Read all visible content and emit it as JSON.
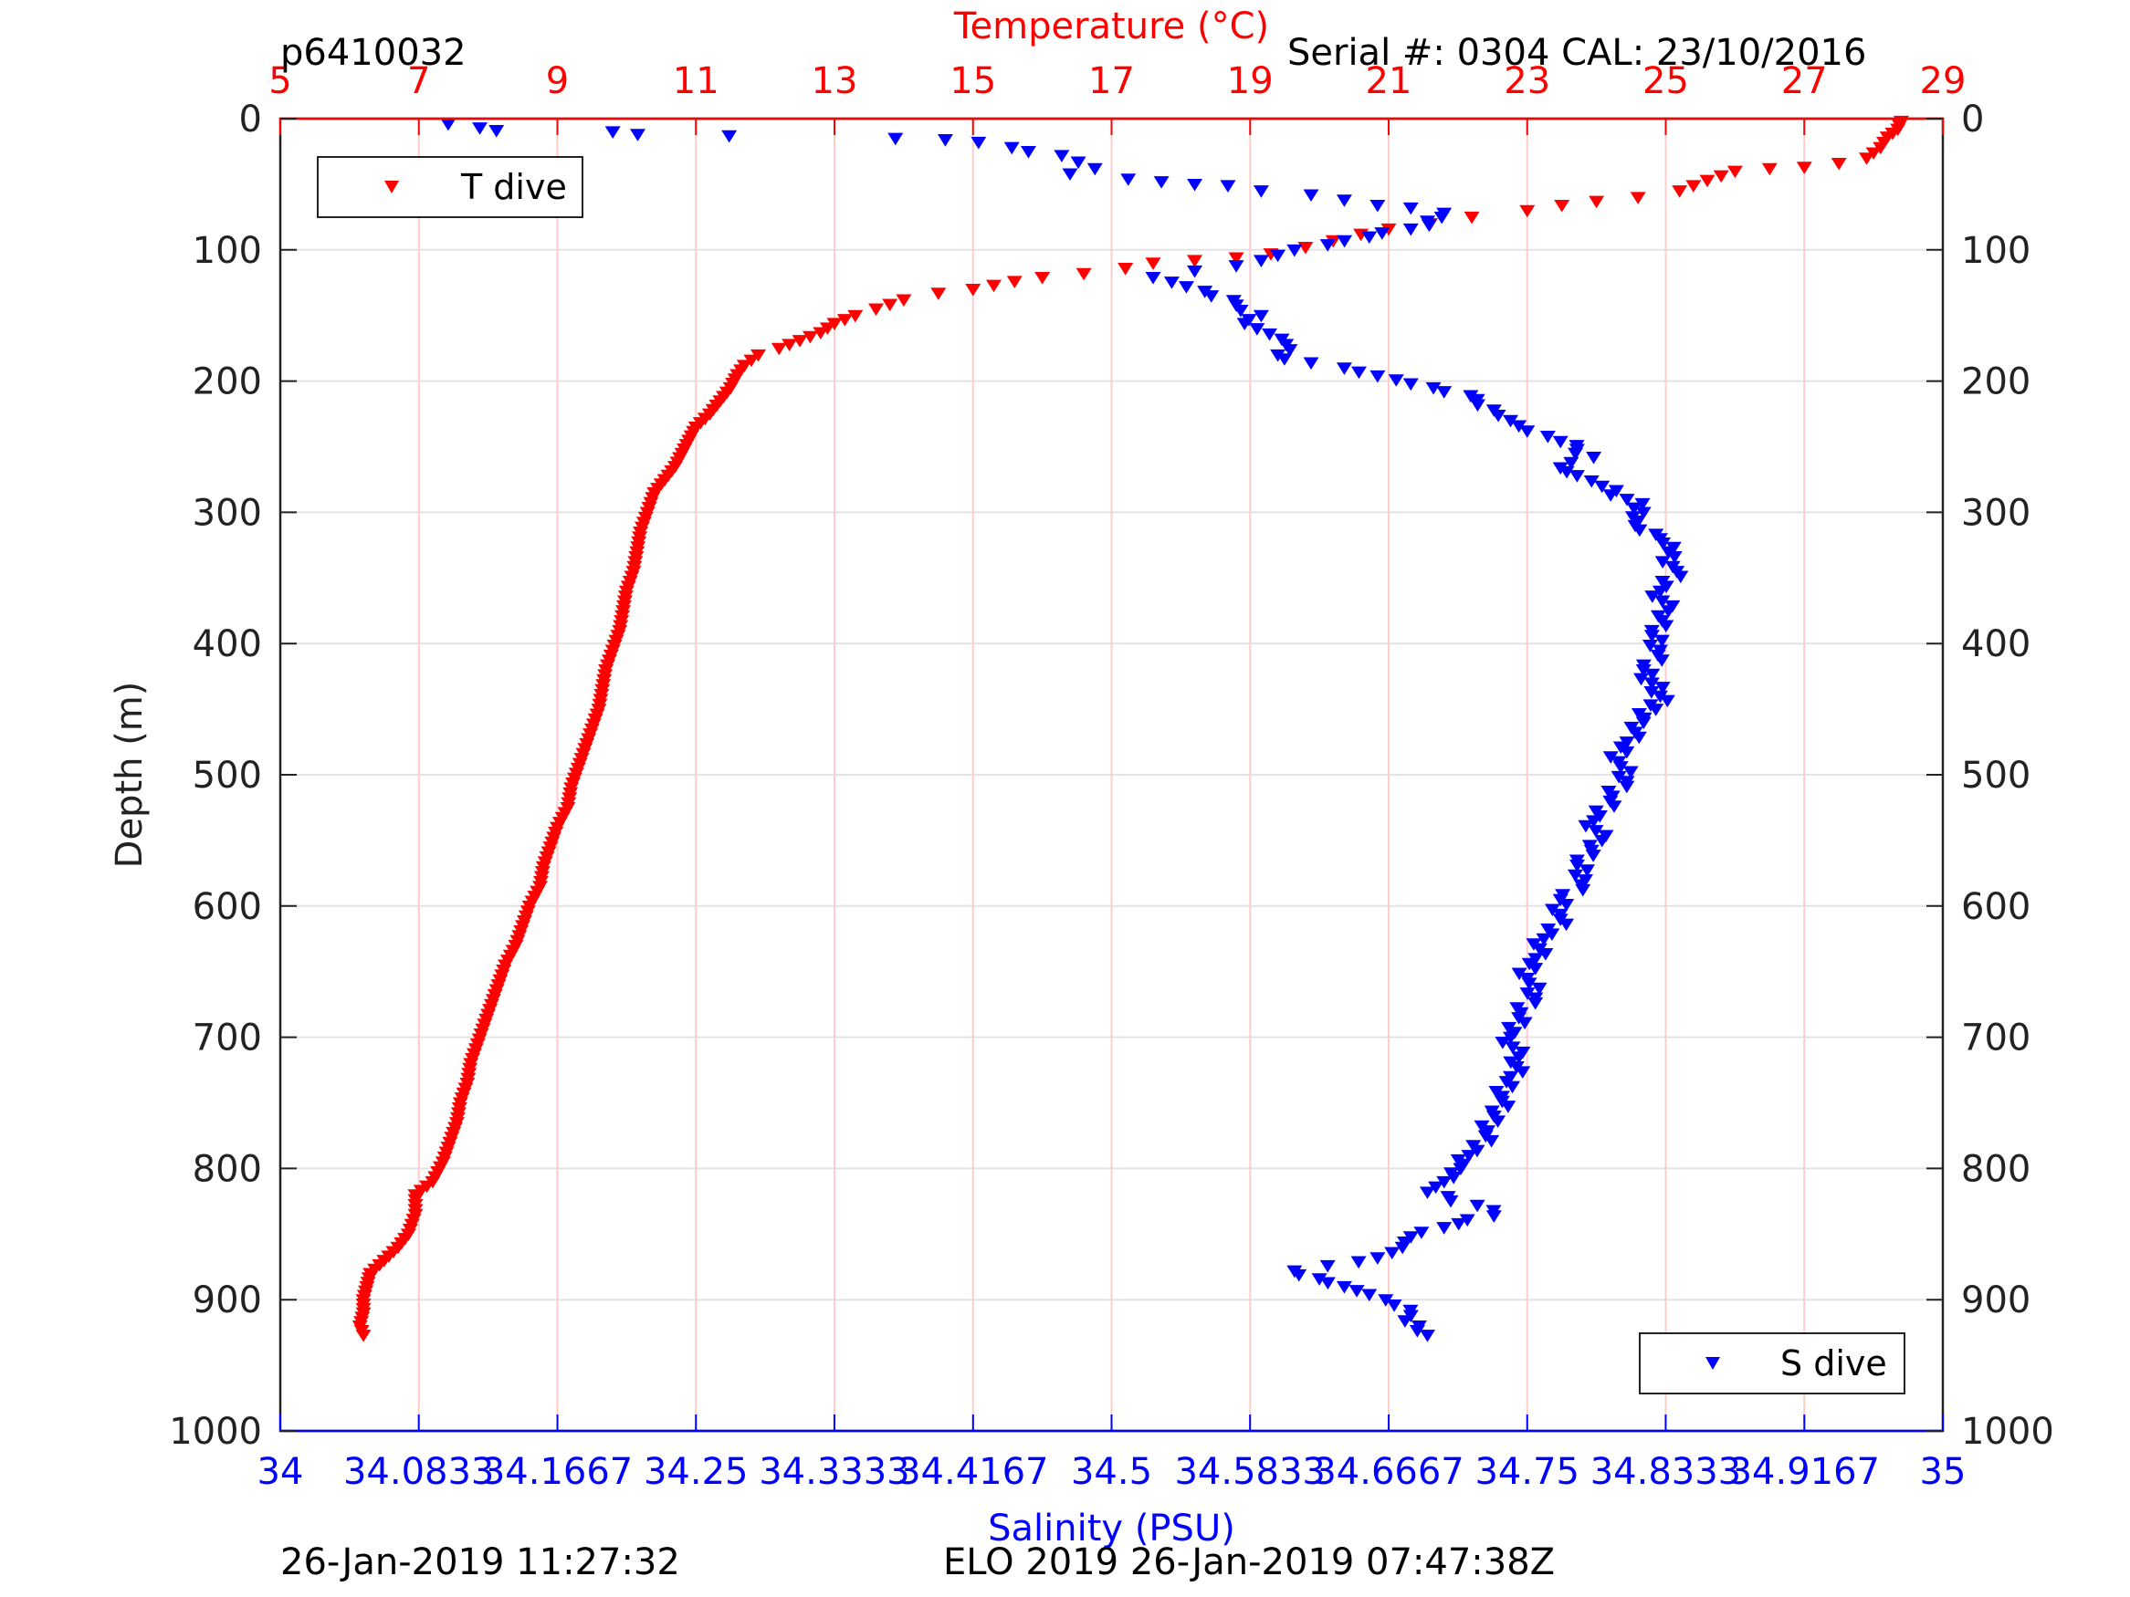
{
  "header": {
    "profile_id": "p6410032",
    "serial": "Serial #: 0304  CAL: 23/10/2016"
  },
  "footer": {
    "left_timestamp": "26-Jan-2019 11:27:32",
    "right_text": "ELO 2019 26-Jan-2019 07:47:38Z"
  },
  "chart_data": {
    "type": "scatter",
    "y_axis": {
      "label": "Depth (m)",
      "lim": [
        0,
        1000
      ],
      "reversed": true,
      "ticks": [
        "0",
        "100",
        "200",
        "300",
        "400",
        "500",
        "600",
        "700",
        "800",
        "900",
        "1000"
      ],
      "tick_values": [
        0,
        100,
        200,
        300,
        400,
        500,
        600,
        700,
        800,
        900,
        1000
      ],
      "grid": true
    },
    "temperature_axis": {
      "label": "Temperature (°C)",
      "position": "top",
      "color": "#ff0000",
      "lim": [
        5,
        29
      ],
      "ticks": [
        "5",
        "7",
        "9",
        "11",
        "13",
        "15",
        "17",
        "19",
        "21",
        "23",
        "25",
        "27",
        "29"
      ],
      "tick_values": [
        5,
        7,
        9,
        11,
        13,
        15,
        17,
        19,
        21,
        23,
        25,
        27,
        29
      ],
      "grid": true,
      "grid_color": "#ffcccc"
    },
    "salinity_axis": {
      "label": "Salinity (PSU)",
      "position": "bottom",
      "color": "#0000ff",
      "lim": [
        34,
        35
      ],
      "ticks": [
        "34",
        "34.0833",
        "34.1667",
        "34.25",
        "34.3333",
        "34.4167",
        "34.5",
        "34.5833",
        "34.6667",
        "34.75",
        "34.8333",
        "34.9167",
        "35"
      ],
      "tick_values": [
        34,
        34.0833,
        34.1667,
        34.25,
        34.3333,
        34.4167,
        34.5,
        34.5833,
        34.6667,
        34.75,
        34.8333,
        34.9167,
        35
      ]
    },
    "series": [
      {
        "name": "T dive",
        "axis": "temperature",
        "color": "#ff0000",
        "marker": "triangle-down",
        "legend_position": "top-left",
        "points": [
          [
            28.4,
            2
          ],
          [
            28.35,
            8
          ],
          [
            28.2,
            14
          ],
          [
            28.1,
            22
          ],
          [
            27.9,
            30
          ],
          [
            27.5,
            34
          ],
          [
            27.0,
            37
          ],
          [
            26.5,
            38
          ],
          [
            26.0,
            40
          ],
          [
            25.6,
            47
          ],
          [
            25.2,
            55
          ],
          [
            24.6,
            60
          ],
          [
            24.0,
            63
          ],
          [
            23.5,
            66
          ],
          [
            23.0,
            70
          ],
          [
            22.2,
            75
          ],
          [
            21.6,
            80
          ],
          [
            21.0,
            84
          ],
          [
            20.6,
            88
          ],
          [
            20.2,
            93
          ],
          [
            19.8,
            98
          ],
          [
            19.3,
            103
          ],
          [
            18.8,
            106
          ],
          [
            18.2,
            108
          ],
          [
            17.6,
            110
          ],
          [
            17.2,
            114
          ],
          [
            16.6,
            118
          ],
          [
            16.0,
            121
          ],
          [
            15.6,
            124
          ],
          [
            15.0,
            130
          ],
          [
            14.5,
            133
          ],
          [
            14.0,
            138
          ],
          [
            13.6,
            145
          ],
          [
            13.3,
            150
          ],
          [
            13.0,
            156
          ],
          [
            12.8,
            163
          ],
          [
            12.5,
            169
          ],
          [
            12.2,
            175
          ],
          [
            11.9,
            180
          ],
          [
            11.7,
            188
          ],
          [
            11.6,
            195
          ],
          [
            11.5,
            205
          ],
          [
            11.35,
            215
          ],
          [
            11.2,
            225
          ],
          [
            11.0,
            235
          ],
          [
            10.9,
            245
          ],
          [
            10.8,
            255
          ],
          [
            10.7,
            265
          ],
          [
            10.55,
            275
          ],
          [
            10.4,
            285
          ],
          [
            10.3,
            300
          ],
          [
            10.2,
            315
          ],
          [
            10.15,
            330
          ],
          [
            10.1,
            345
          ],
          [
            10.0,
            360
          ],
          [
            9.95,
            375
          ],
          [
            9.9,
            390
          ],
          [
            9.8,
            405
          ],
          [
            9.7,
            420
          ],
          [
            9.65,
            435
          ],
          [
            9.6,
            450
          ],
          [
            9.5,
            465
          ],
          [
            9.4,
            480
          ],
          [
            9.3,
            495
          ],
          [
            9.2,
            510
          ],
          [
            9.15,
            525
          ],
          [
            9.0,
            540
          ],
          [
            8.9,
            555
          ],
          [
            8.8,
            570
          ],
          [
            8.75,
            585
          ],
          [
            8.6,
            600
          ],
          [
            8.5,
            615
          ],
          [
            8.4,
            630
          ],
          [
            8.25,
            645
          ],
          [
            8.15,
            660
          ],
          [
            8.05,
            675
          ],
          [
            7.95,
            690
          ],
          [
            7.85,
            705
          ],
          [
            7.75,
            720
          ],
          [
            7.7,
            735
          ],
          [
            7.6,
            750
          ],
          [
            7.55,
            765
          ],
          [
            7.45,
            780
          ],
          [
            7.35,
            795
          ],
          [
            7.2,
            810
          ],
          [
            6.95,
            820
          ],
          [
            6.95,
            835
          ],
          [
            6.85,
            850
          ],
          [
            6.7,
            860
          ],
          [
            6.5,
            870
          ],
          [
            6.3,
            880
          ],
          [
            6.25,
            890
          ],
          [
            6.2,
            900
          ],
          [
            6.2,
            910
          ],
          [
            6.15,
            920
          ],
          [
            6.2,
            927
          ]
        ]
      },
      {
        "name": "S dive",
        "axis": "salinity",
        "color": "#0000ff",
        "marker": "triangle-down",
        "legend_position": "bottom-right",
        "points": [
          [
            34.101,
            4
          ],
          [
            34.12,
            7
          ],
          [
            34.13,
            9
          ],
          [
            34.2,
            10
          ],
          [
            34.215,
            12
          ],
          [
            34.27,
            13
          ],
          [
            34.37,
            15
          ],
          [
            34.4,
            16
          ],
          [
            34.42,
            18
          ],
          [
            34.44,
            22
          ],
          [
            34.45,
            25
          ],
          [
            34.47,
            28
          ],
          [
            34.48,
            33
          ],
          [
            34.49,
            38
          ],
          [
            34.475,
            42
          ],
          [
            34.51,
            46
          ],
          [
            34.53,
            48
          ],
          [
            34.55,
            50
          ],
          [
            34.57,
            51
          ],
          [
            34.59,
            55
          ],
          [
            34.62,
            58
          ],
          [
            34.64,
            62
          ],
          [
            34.66,
            66
          ],
          [
            34.68,
            68
          ],
          [
            34.7,
            72
          ],
          [
            34.69,
            78
          ],
          [
            34.68,
            84
          ],
          [
            34.655,
            90
          ],
          [
            34.63,
            96
          ],
          [
            34.61,
            100
          ],
          [
            34.6,
            104
          ],
          [
            34.59,
            108
          ],
          [
            34.575,
            112
          ],
          [
            34.55,
            116
          ],
          [
            34.525,
            121
          ],
          [
            34.545,
            128
          ],
          [
            34.56,
            135
          ],
          [
            34.575,
            142
          ],
          [
            34.59,
            150
          ],
          [
            34.58,
            156
          ],
          [
            34.595,
            164
          ],
          [
            34.605,
            172
          ],
          [
            34.6,
            180
          ],
          [
            34.62,
            186
          ],
          [
            34.64,
            190
          ],
          [
            34.66,
            196
          ],
          [
            34.68,
            202
          ],
          [
            34.7,
            208
          ],
          [
            34.72,
            214
          ],
          [
            34.73,
            222
          ],
          [
            34.74,
            230
          ],
          [
            34.75,
            238
          ],
          [
            34.77,
            246
          ],
          [
            34.78,
            252
          ],
          [
            34.79,
            258
          ],
          [
            34.77,
            266
          ],
          [
            34.78,
            272
          ],
          [
            34.795,
            280
          ],
          [
            34.81,
            290
          ],
          [
            34.82,
            300
          ],
          [
            34.815,
            310
          ],
          [
            34.83,
            320
          ],
          [
            34.835,
            330
          ],
          [
            34.84,
            345
          ],
          [
            34.83,
            360
          ],
          [
            34.835,
            375
          ],
          [
            34.825,
            390
          ],
          [
            34.83,
            405
          ],
          [
            34.82,
            420
          ],
          [
            34.83,
            440
          ],
          [
            34.82,
            460
          ],
          [
            34.81,
            475
          ],
          [
            34.805,
            490
          ],
          [
            34.81,
            505
          ],
          [
            34.8,
            520
          ],
          [
            34.79,
            535
          ],
          [
            34.795,
            550
          ],
          [
            34.78,
            565
          ],
          [
            34.785,
            580
          ],
          [
            34.77,
            595
          ],
          [
            34.77,
            610
          ],
          [
            34.76,
            625
          ],
          [
            34.755,
            640
          ],
          [
            34.75,
            655
          ],
          [
            34.755,
            670
          ],
          [
            34.745,
            685
          ],
          [
            34.74,
            700
          ],
          [
            34.745,
            715
          ],
          [
            34.74,
            730
          ],
          [
            34.735,
            745
          ],
          [
            34.73,
            760
          ],
          [
            34.725,
            775
          ],
          [
            34.715,
            790
          ],
          [
            34.71,
            800
          ],
          [
            34.7,
            810
          ],
          [
            34.69,
            818
          ],
          [
            34.72,
            828
          ],
          [
            34.73,
            836
          ],
          [
            34.7,
            845
          ],
          [
            34.68,
            852
          ],
          [
            34.675,
            860
          ],
          [
            34.66,
            868
          ],
          [
            34.63,
            874
          ],
          [
            34.61,
            878
          ],
          [
            34.625,
            884
          ],
          [
            34.64,
            890
          ],
          [
            34.655,
            896
          ],
          [
            34.67,
            904
          ],
          [
            34.68,
            912
          ],
          [
            34.685,
            920
          ],
          [
            34.69,
            927
          ]
        ]
      }
    ],
    "legend": [
      "T dive",
      "S dive"
    ]
  }
}
